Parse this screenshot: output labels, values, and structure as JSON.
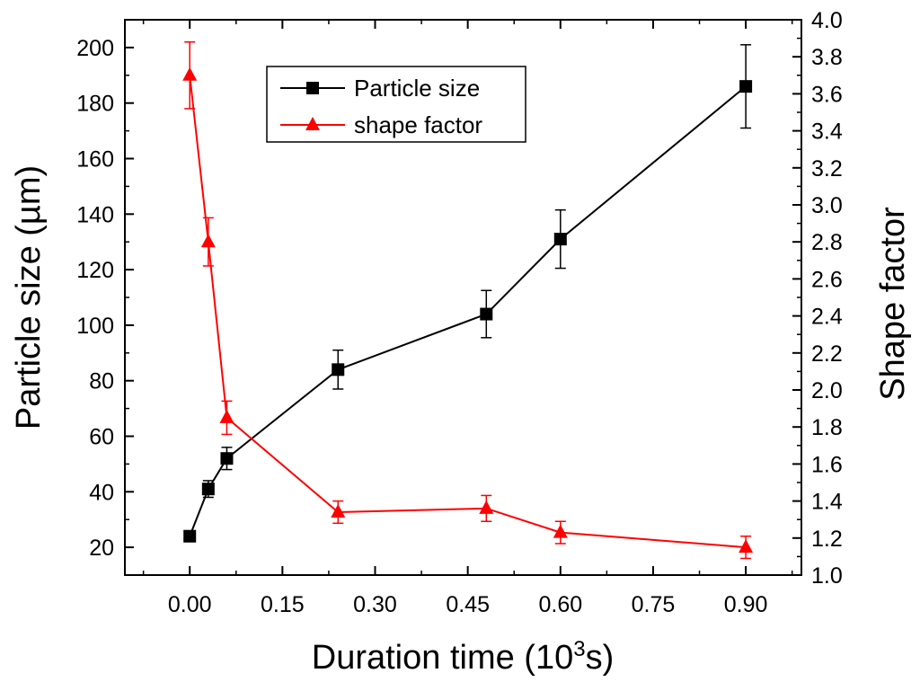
{
  "chart_data": {
    "type": "line",
    "x": [
      0.0,
      0.03,
      0.06,
      0.24,
      0.48,
      0.6,
      0.9
    ],
    "xlabel_main": "Duration time (10",
    "xlabel_sup": "3",
    "xlabel_tail": "s)",
    "ylabel": "Particle size (µm)",
    "y2label": "Shape factor",
    "xlim": [
      -0.105,
      0.99
    ],
    "ylim": [
      10,
      210
    ],
    "y2lim": [
      1.0,
      4.0
    ],
    "xticks": [
      0.0,
      0.15,
      0.3,
      0.45,
      0.6,
      0.75,
      0.9
    ],
    "xtick_labels": [
      "0.00",
      "0.15",
      "0.30",
      "0.45",
      "0.60",
      "0.75",
      "0.90"
    ],
    "yticks": [
      20,
      40,
      60,
      80,
      100,
      120,
      140,
      160,
      180,
      200
    ],
    "ytick_labels": [
      "20",
      "40",
      "60",
      "80",
      "100",
      "120",
      "140",
      "160",
      "180",
      "200"
    ],
    "y2ticks": [
      1.0,
      1.2,
      1.4,
      1.6,
      1.8,
      2.0,
      2.2,
      2.4,
      2.6,
      2.8,
      3.0,
      3.2,
      3.4,
      3.6,
      3.8,
      4.0
    ],
    "y2tick_labels": [
      "1.0",
      "1.2",
      "1.4",
      "1.6",
      "1.8",
      "2.0",
      "2.2",
      "2.4",
      "2.6",
      "2.8",
      "3.0",
      "3.2",
      "3.4",
      "3.6",
      "3.8",
      "4.0"
    ],
    "series": [
      {
        "name": "Particle size",
        "axis": "left",
        "color": "#000000",
        "marker": "square",
        "values": [
          24,
          41,
          52,
          84,
          104,
          131,
          186
        ],
        "errors": [
          1.5,
          3,
          4,
          7,
          8.5,
          10.5,
          15
        ]
      },
      {
        "name": "shape factor",
        "axis": "right",
        "color": "#ff0000",
        "marker": "triangle",
        "values": [
          3.7,
          2.8,
          1.85,
          1.34,
          1.36,
          1.23,
          1.15
        ],
        "errors": [
          0.18,
          0.13,
          0.09,
          0.06,
          0.07,
          0.06,
          0.06
        ]
      }
    ],
    "legend": {
      "position": "top-center",
      "entries": [
        "Particle size",
        "shape factor"
      ]
    }
  }
}
